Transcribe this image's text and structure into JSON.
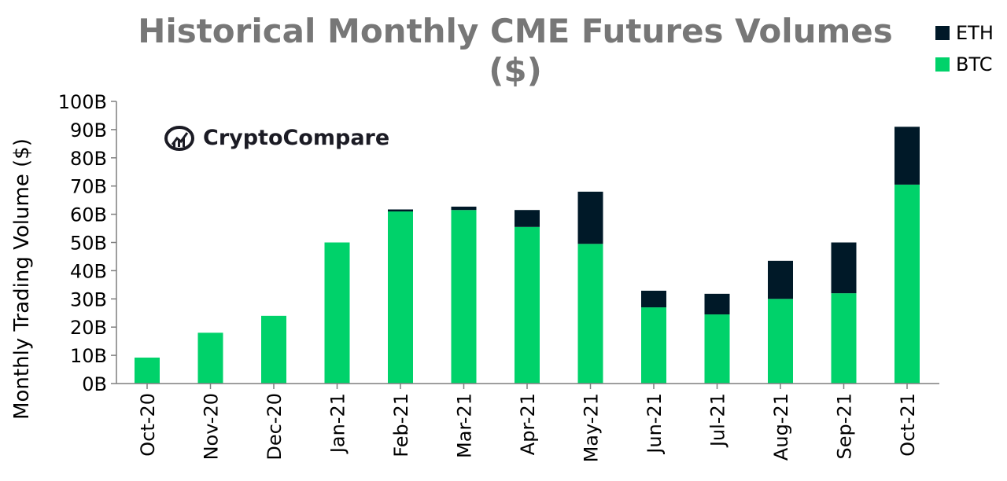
{
  "chart_data": {
    "type": "bar",
    "stacked": true,
    "title": "Historical Monthly CME Futures Volumes ($)",
    "title_lines": [
      "Historical Monthly CME Futures Volumes",
      "($)"
    ],
    "xlabel": "",
    "ylabel": "Monthly Trading Volume ($)",
    "ylim": [
      0,
      100
    ],
    "yticks": [
      0,
      10,
      20,
      30,
      40,
      50,
      60,
      70,
      80,
      90,
      100
    ],
    "ytick_labels": [
      "0B",
      "10B",
      "20B",
      "30B",
      "40B",
      "50B",
      "60B",
      "70B",
      "80B",
      "90B",
      "100B"
    ],
    "categories": [
      "Oct-20",
      "Nov-20",
      "Dec-20",
      "Jan-21",
      "Feb-21",
      "Mar-21",
      "Apr-21",
      "May-21",
      "Jun-21",
      "Jul-21",
      "Aug-21",
      "Sep-21",
      "Oct-21"
    ],
    "series": [
      {
        "name": "BTC",
        "color": "#00d26a",
        "values": [
          9.2,
          18,
          24,
          50,
          61,
          61.5,
          55.5,
          49.5,
          27,
          24.5,
          30,
          32,
          70.5
        ]
      },
      {
        "name": "ETH",
        "color": "#001928",
        "values": [
          0,
          0,
          0,
          0,
          0.7,
          1.2,
          6,
          18.5,
          5.9,
          7.3,
          13.5,
          18,
          20.5
        ]
      }
    ],
    "legend": {
      "position": "top-right",
      "order": [
        "ETH",
        "BTC"
      ]
    },
    "grid": false
  },
  "watermark": {
    "text": "CryptoCompare",
    "icon": "cryptocompare-logo-icon"
  }
}
